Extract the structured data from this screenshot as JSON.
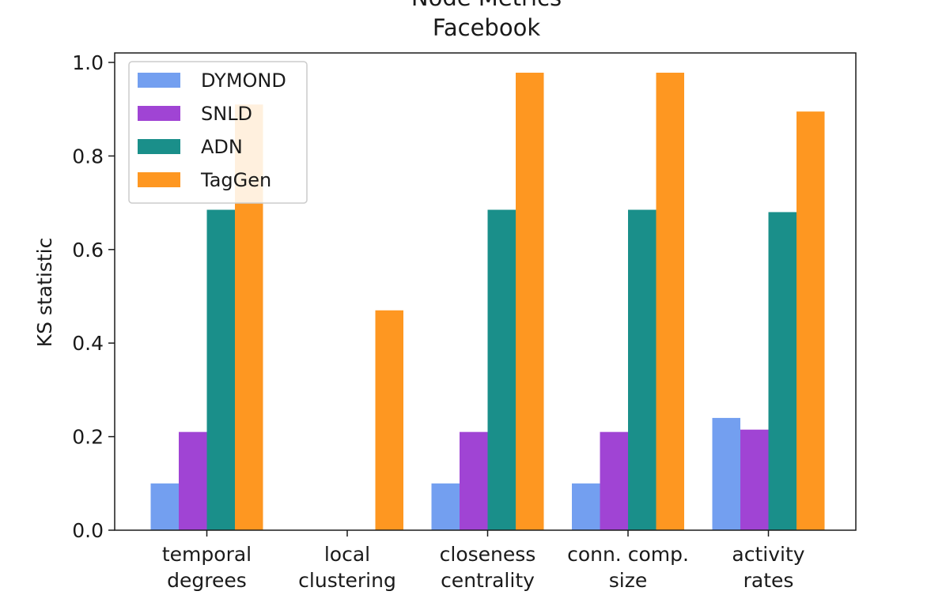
{
  "chart_data": {
    "type": "bar",
    "title_lines": [
      "Node Metrics",
      "Facebook"
    ],
    "xlabel": "",
    "ylabel": "KS statistic",
    "ylim": [
      0,
      1.0
    ],
    "yticks": [
      "0.0",
      "0.2",
      "0.4",
      "0.6",
      "0.8",
      "1.0"
    ],
    "categories": [
      [
        "temporal",
        "degrees"
      ],
      [
        "local",
        "clustering"
      ],
      [
        "closeness",
        "centrality"
      ],
      [
        "conn. comp.",
        "size"
      ],
      [
        "activity",
        "rates"
      ]
    ],
    "series": [
      {
        "name": "DYMOND",
        "color": "#739ff0",
        "values": [
          0.1,
          0.0,
          0.1,
          0.1,
          0.24
        ]
      },
      {
        "name": "SNLD",
        "color": "#a044d4",
        "values": [
          0.21,
          0.0,
          0.21,
          0.21,
          0.215
        ]
      },
      {
        "name": "ADN",
        "color": "#1a8f8a",
        "values": [
          0.685,
          0.0,
          0.685,
          0.685,
          0.68
        ]
      },
      {
        "name": "TagGen",
        "color": "#fe9721",
        "values": [
          0.91,
          0.47,
          0.978,
          0.978,
          0.895
        ]
      }
    ],
    "grid": false,
    "legend": "top-left"
  }
}
